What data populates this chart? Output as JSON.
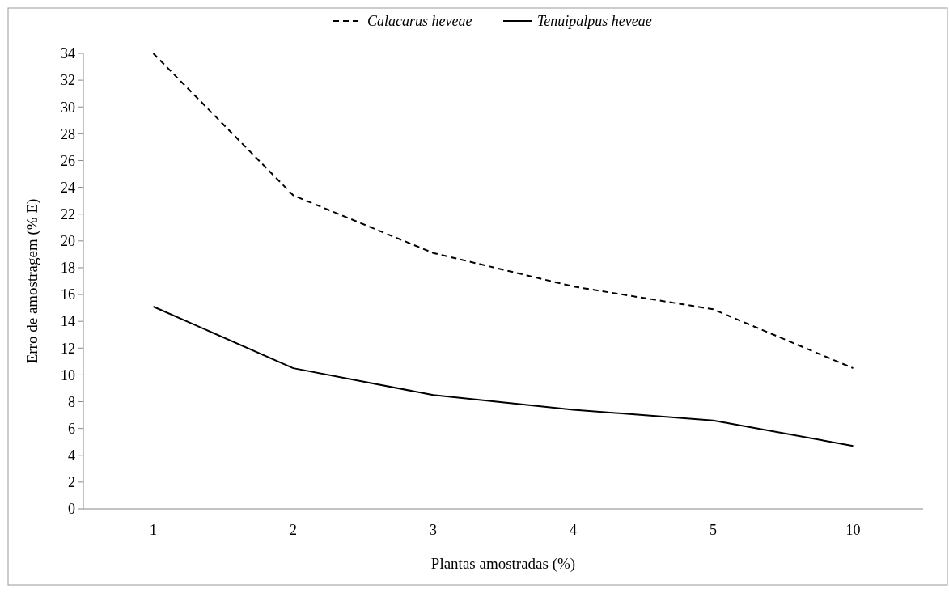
{
  "chart_data": {
    "type": "line",
    "xlabel": "Plantas amostradas (%)",
    "ylabel": "Erro de amostragem (% E)",
    "categories": [
      "1",
      "2",
      "3",
      "4",
      "5",
      "10"
    ],
    "series": [
      {
        "name": "Calacarus heveae",
        "color": "#000000",
        "line_style": "dashed",
        "values": [
          34,
          23.4,
          19.1,
          16.6,
          14.9,
          10.5
        ]
      },
      {
        "name": "Tenuipalpus heveae",
        "color": "#000000",
        "line_style": "solid",
        "values": [
          15.1,
          10.5,
          8.5,
          7.4,
          6.6,
          4.7
        ]
      }
    ],
    "ylim": [
      0,
      34
    ],
    "yticks": [
      0,
      2,
      4,
      6,
      8,
      10,
      12,
      14,
      16,
      18,
      20,
      22,
      24,
      26,
      28,
      30,
      32,
      34
    ],
    "legend": "top",
    "grid": false,
    "marker": "none"
  }
}
